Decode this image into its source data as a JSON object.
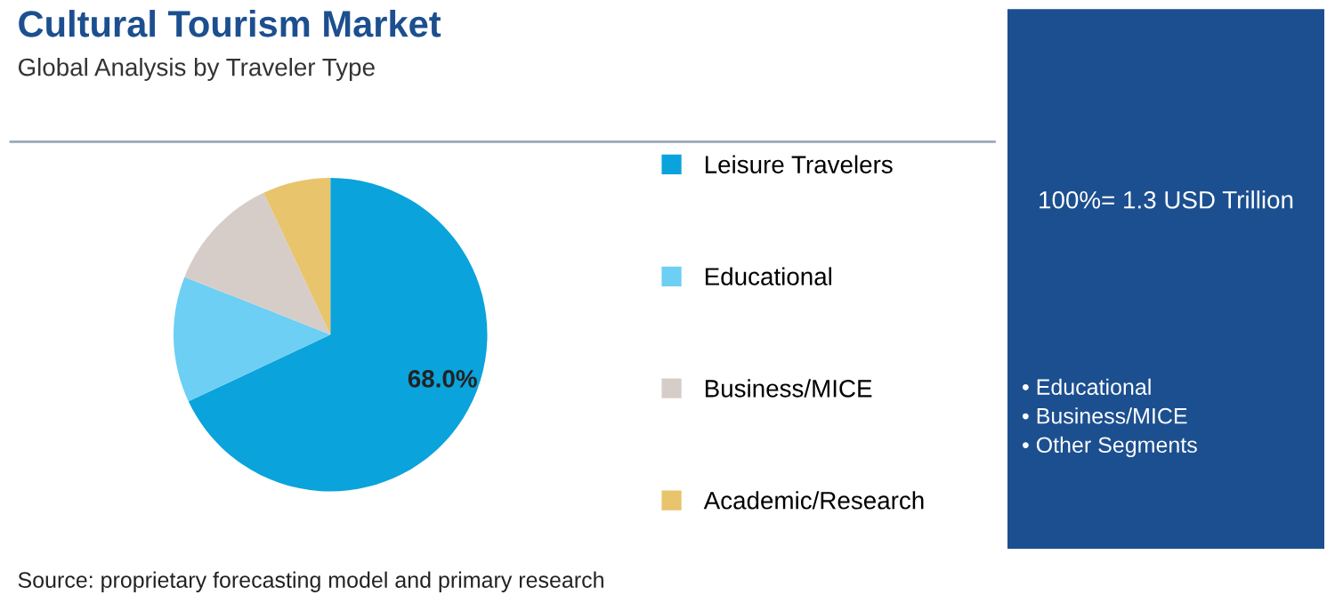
{
  "chart_data": {
    "type": "pie",
    "title": "Cultural Tourism Market",
    "subtitle": "Global Analysis by Traveler Type",
    "categories": [
      "Leisure Travelers",
      "Educational",
      "Business/MICE",
      "Academic/Research"
    ],
    "values": [
      68,
      13,
      12,
      7
    ],
    "colors": [
      "#0aa3dc",
      "#6ccff3",
      "#d6cdc8",
      "#e8c46c"
    ],
    "value_labels": [
      "68.0%",
      null,
      null,
      null
    ],
    "legend": "right",
    "annotations": [
      "100%= 1.3 USD Trillion",
      "• Educational",
      "• Business/MICE",
      "• Other Segments",
      "Source: proprietary forecasting model and primary research"
    ]
  }
}
